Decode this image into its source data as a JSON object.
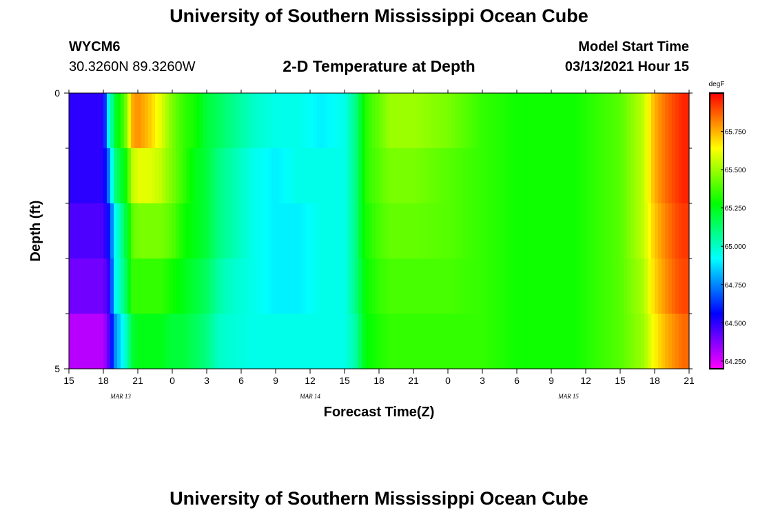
{
  "header": {
    "title": "University of Southern Mississippi Ocean Cube",
    "station": "WYCM6",
    "coords": "30.3260N 89.3260W",
    "plot_title": "2-D Temperature at Depth",
    "model_label": "Model Start Time",
    "model_time": "03/13/2021 Hour 15"
  },
  "footer": {
    "title": "University of Southern Mississippi Ocean Cube"
  },
  "chart_data": {
    "type": "heatmap",
    "xlabel": "Forecast Time(Z)",
    "ylabel": "Depth (ft)",
    "colorbar_label": "degF",
    "x_ticks": [
      "15",
      "18",
      "21",
      "0",
      "3",
      "6",
      "9",
      "12",
      "15",
      "18",
      "21",
      "0",
      "3",
      "6",
      "9",
      "12",
      "15",
      "18",
      "21"
    ],
    "date_labels": [
      {
        "label": "MAR 13",
        "tick_index": 1.5
      },
      {
        "label": "MAR 14",
        "tick_index": 7
      },
      {
        "label": "MAR 15",
        "tick_index": 14.5
      }
    ],
    "y_tick_labels": [
      {
        "label": "0",
        "depth": 0
      },
      {
        "label": "5",
        "depth": 5
      }
    ],
    "y_minor_ticks": [
      1,
      2,
      3,
      4
    ],
    "depth_range": [
      0,
      5
    ],
    "color_range": [
      64.2,
      66.0
    ],
    "colorbar_ticks": [
      "64.250",
      "64.500",
      "64.750",
      "65.000",
      "65.250",
      "65.500",
      "65.750"
    ],
    "colorbar_tick_values": [
      64.25,
      64.5,
      64.75,
      65.0,
      65.25,
      65.5,
      65.75
    ],
    "temperature_profile_degF": {
      "forecast_hours": [
        0,
        3,
        3.5,
        4,
        5,
        5.5,
        6,
        7,
        8,
        9,
        10,
        11,
        12,
        13,
        14,
        16,
        18,
        20,
        22,
        24,
        25,
        25.5,
        26,
        27,
        28,
        30,
        33,
        36,
        39,
        42,
        44,
        46,
        48,
        50,
        51,
        52,
        53,
        53.5,
        54
      ],
      "depth_rows": [
        {
          "depth": 0.5,
          "values": [
            64.5,
            64.5,
            64.95,
            65.2,
            65.45,
            65.75,
            65.8,
            65.72,
            65.6,
            65.45,
            65.35,
            65.3,
            65.2,
            65.15,
            65.1,
            65.0,
            64.95,
            64.95,
            64.9,
            64.95,
            65.1,
            65.25,
            65.35,
            65.42,
            65.5,
            65.5,
            65.45,
            65.35,
            65.3,
            65.3,
            65.3,
            65.35,
            65.4,
            65.55,
            65.75,
            65.85,
            65.92,
            65.95,
            65.95
          ]
        },
        {
          "depth": 1.5,
          "values": [
            64.5,
            64.5,
            64.75,
            65.1,
            65.3,
            65.55,
            65.6,
            65.6,
            65.55,
            65.45,
            65.35,
            65.25,
            65.2,
            65.1,
            65.05,
            64.95,
            64.9,
            64.95,
            64.95,
            64.95,
            65.1,
            65.25,
            65.35,
            65.4,
            65.45,
            65.45,
            65.4,
            65.35,
            65.3,
            65.3,
            65.3,
            65.35,
            65.4,
            65.55,
            65.75,
            65.85,
            65.92,
            65.95,
            65.95
          ]
        },
        {
          "depth": 2.5,
          "values": [
            64.45,
            64.45,
            64.6,
            64.9,
            65.2,
            65.4,
            65.45,
            65.45,
            65.45,
            65.4,
            65.3,
            65.25,
            65.2,
            65.1,
            65.05,
            64.95,
            64.9,
            64.9,
            64.95,
            64.95,
            65.1,
            65.25,
            65.32,
            65.38,
            65.42,
            65.42,
            65.4,
            65.35,
            65.3,
            65.3,
            65.3,
            65.35,
            65.4,
            65.55,
            65.72,
            65.82,
            65.9,
            65.92,
            65.92
          ]
        },
        {
          "depth": 3.5,
          "values": [
            64.4,
            64.4,
            64.5,
            64.9,
            65.15,
            65.35,
            65.35,
            65.35,
            65.35,
            65.3,
            65.25,
            65.2,
            65.15,
            65.05,
            65.0,
            64.95,
            64.9,
            64.9,
            64.95,
            64.95,
            65.1,
            65.22,
            65.3,
            65.35,
            65.38,
            65.38,
            65.38,
            65.35,
            65.3,
            65.3,
            65.3,
            65.35,
            65.4,
            65.52,
            65.7,
            65.8,
            65.88,
            65.9,
            65.9
          ]
        },
        {
          "depth": 4.5,
          "values": [
            64.3,
            64.3,
            64.45,
            64.75,
            65.0,
            65.2,
            65.25,
            65.25,
            65.25,
            65.2,
            65.2,
            65.15,
            65.1,
            65.0,
            64.98,
            64.95,
            64.95,
            64.95,
            64.95,
            64.95,
            65.05,
            65.2,
            65.28,
            65.32,
            65.35,
            65.35,
            65.35,
            65.35,
            65.3,
            65.3,
            65.3,
            65.35,
            65.4,
            65.5,
            65.65,
            65.75,
            65.82,
            65.85,
            65.85
          ]
        }
      ]
    }
  }
}
